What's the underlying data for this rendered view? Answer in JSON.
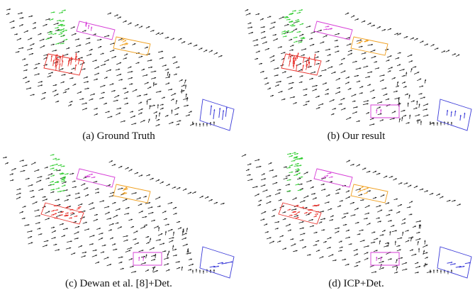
{
  "figure": {
    "panels": [
      {
        "id": "a",
        "caption": "(a) Ground Truth"
      },
      {
        "id": "b",
        "caption": "(b) Our result"
      },
      {
        "id": "c",
        "caption": "(c) Dewan et al.  [8]+Det."
      },
      {
        "id": "d",
        "caption": "(d) ICP+Det."
      }
    ],
    "colors": {
      "background_flow": "#1a1a1a",
      "green_object": "#2ecc2e",
      "red_object": "#e8302a",
      "magenta_object": "#d63bd6",
      "orange_object": "#f0a020",
      "blue_object": "#3a3ad8"
    },
    "icons": [
      "motion-vector-arrow",
      "bounding-box"
    ]
  }
}
